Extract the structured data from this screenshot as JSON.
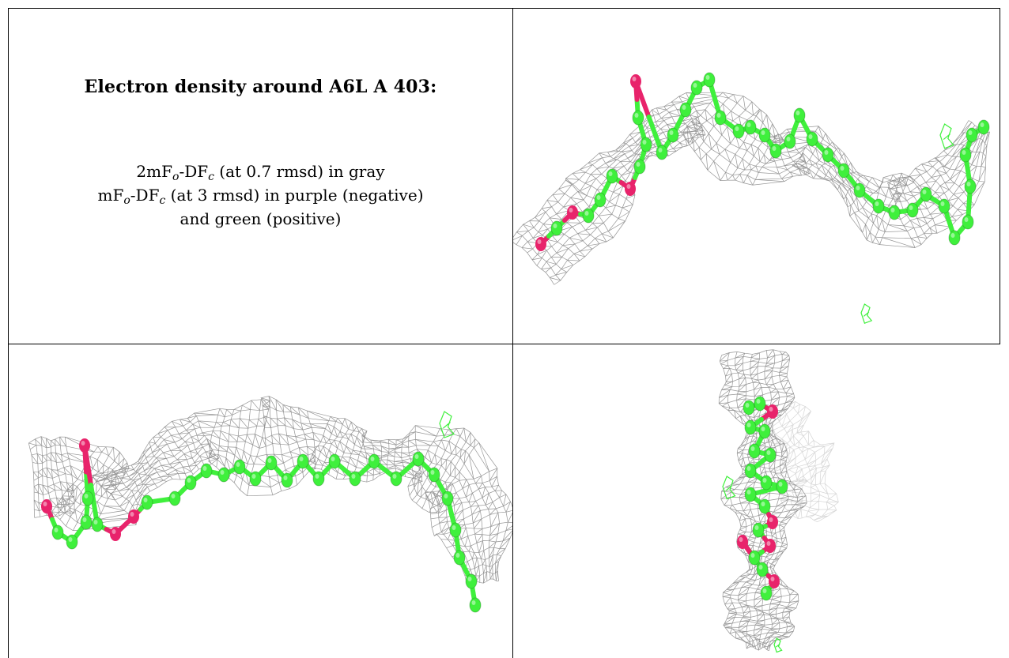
{
  "caption": {
    "title": "Electron density around A6L A 403:",
    "line1": {
      "prefix": "2mF",
      "sub1": "o",
      "mid": "-DF",
      "sub2": "c",
      "suffix": " (at 0.7 rmsd) in gray"
    },
    "line2": {
      "prefix": "mF",
      "sub1": "o",
      "mid": "-DF",
      "sub2": "c",
      "suffix": " (at 3 rmsd) in purple (negative)"
    },
    "line3": "and green (positive)"
  },
  "colors": {
    "mesh": "#8a8a8a",
    "carbon": "#3ff03c",
    "oxygen": "#e8236b",
    "positive_density": "#3ff03c",
    "border": "#000000"
  },
  "panels": [
    {
      "name": "panel-view-top-right",
      "content": "mesh-and-ball-and-stick-model"
    },
    {
      "name": "panel-view-bottom-left",
      "content": "mesh-and-ball-and-stick-model"
    },
    {
      "name": "panel-view-bottom-right",
      "content": "mesh-and-ball-and-stick-model"
    }
  ]
}
